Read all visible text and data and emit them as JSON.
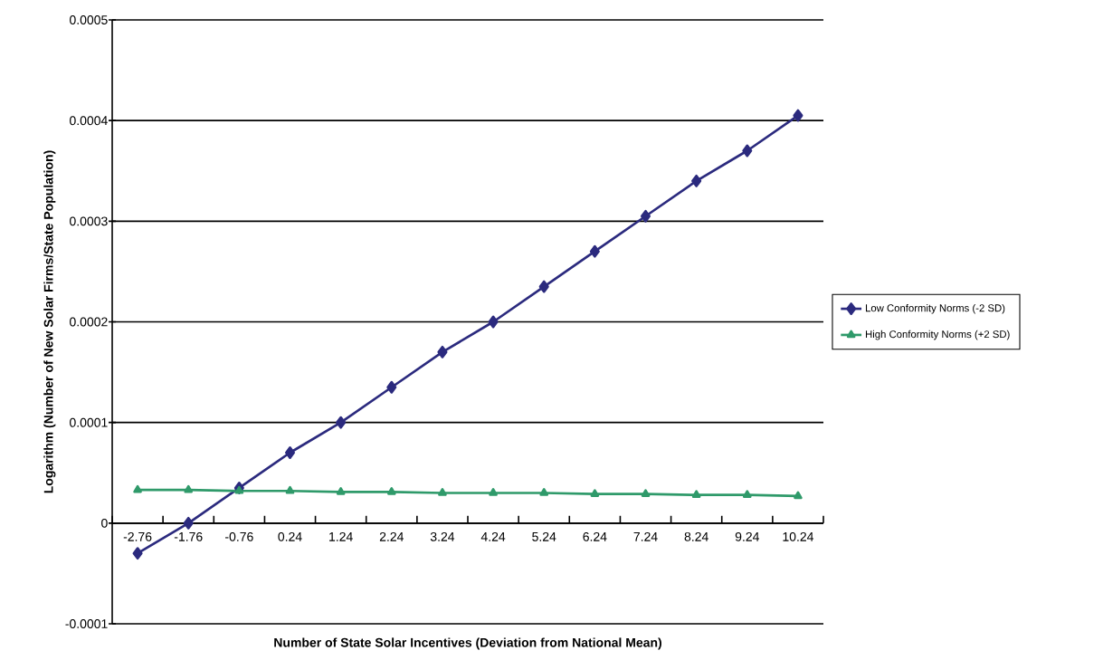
{
  "chart_data": {
    "type": "line",
    "xlabel": "Number of State Solar Incentives (Deviation from National Mean)",
    "ylabel": "Logarithm (Number of New Solar Firms/State Population)",
    "categories": [
      "-2.76",
      "-1.76",
      "-0.76",
      "0.24",
      "1.24",
      "2.24",
      "3.24",
      "4.24",
      "5.24",
      "6.24",
      "7.24",
      "8.24",
      "9.24",
      "10.24"
    ],
    "series": [
      {
        "name": "Low Conformity Norms (-2 SD)",
        "color": "#2b2a7e",
        "marker": "diamond",
        "values": [
          -3e-05,
          0,
          3.5e-05,
          7e-05,
          0.0001,
          0.000135,
          0.00017,
          0.0002,
          0.000235,
          0.00027,
          0.000305,
          0.00034,
          0.00037,
          0.000405
        ]
      },
      {
        "name": "High Conformity Norms (+2 SD)",
        "color": "#2f9a6a",
        "marker": "triangle",
        "values": [
          3.3e-05,
          3.3e-05,
          3.2e-05,
          3.2e-05,
          3.1e-05,
          3.1e-05,
          3e-05,
          3e-05,
          3e-05,
          2.9e-05,
          2.9e-05,
          2.8e-05,
          2.8e-05,
          2.7e-05
        ]
      }
    ],
    "ylim": [
      -0.0001,
      0.0005
    ],
    "yticks": [
      -0.0001,
      0,
      0.0001,
      0.0002,
      0.0003,
      0.0004,
      0.0005
    ],
    "grid": "y",
    "legend": "right",
    "line_style": "solid"
  }
}
